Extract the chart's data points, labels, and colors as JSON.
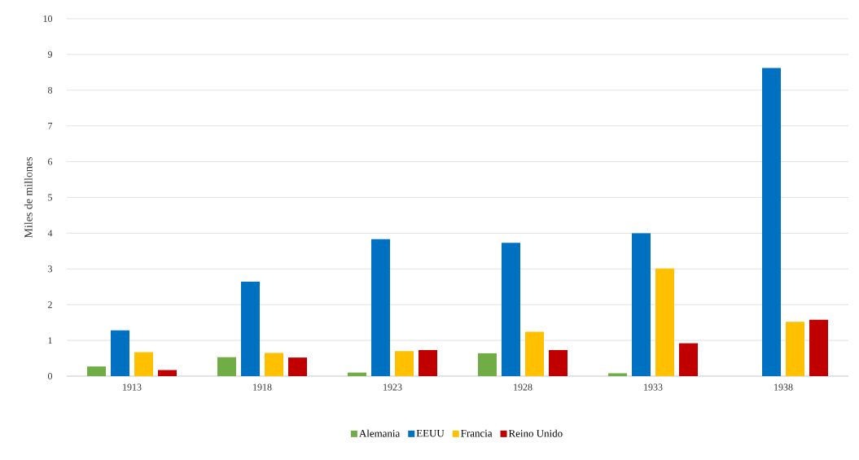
{
  "chart_data": {
    "type": "bar",
    "ylabel": "Miles de millones",
    "categories": [
      "1913",
      "1918",
      "1923",
      "1928",
      "1933",
      "1938"
    ],
    "series": [
      {
        "name": "Alemania",
        "color": "#70ad47",
        "values": [
          0.27,
          0.53,
          0.1,
          0.64,
          0.08,
          null
        ]
      },
      {
        "name": "EEUU",
        "color": "#0070c0",
        "values": [
          1.28,
          2.64,
          3.83,
          3.73,
          4.0,
          8.62
        ]
      },
      {
        "name": "Francia",
        "color": "#ffc000",
        "values": [
          0.67,
          0.65,
          0.7,
          1.24,
          3.01,
          1.52
        ]
      },
      {
        "name": "Reino Unido",
        "color": "#c00000",
        "values": [
          0.17,
          0.52,
          0.73,
          0.73,
          0.92,
          1.58
        ]
      }
    ],
    "ylim": [
      0,
      10
    ],
    "yticks": [
      0,
      1,
      2,
      3,
      4,
      5,
      6,
      7,
      8,
      9,
      10
    ],
    "grid": "y",
    "legend": "bottom"
  }
}
